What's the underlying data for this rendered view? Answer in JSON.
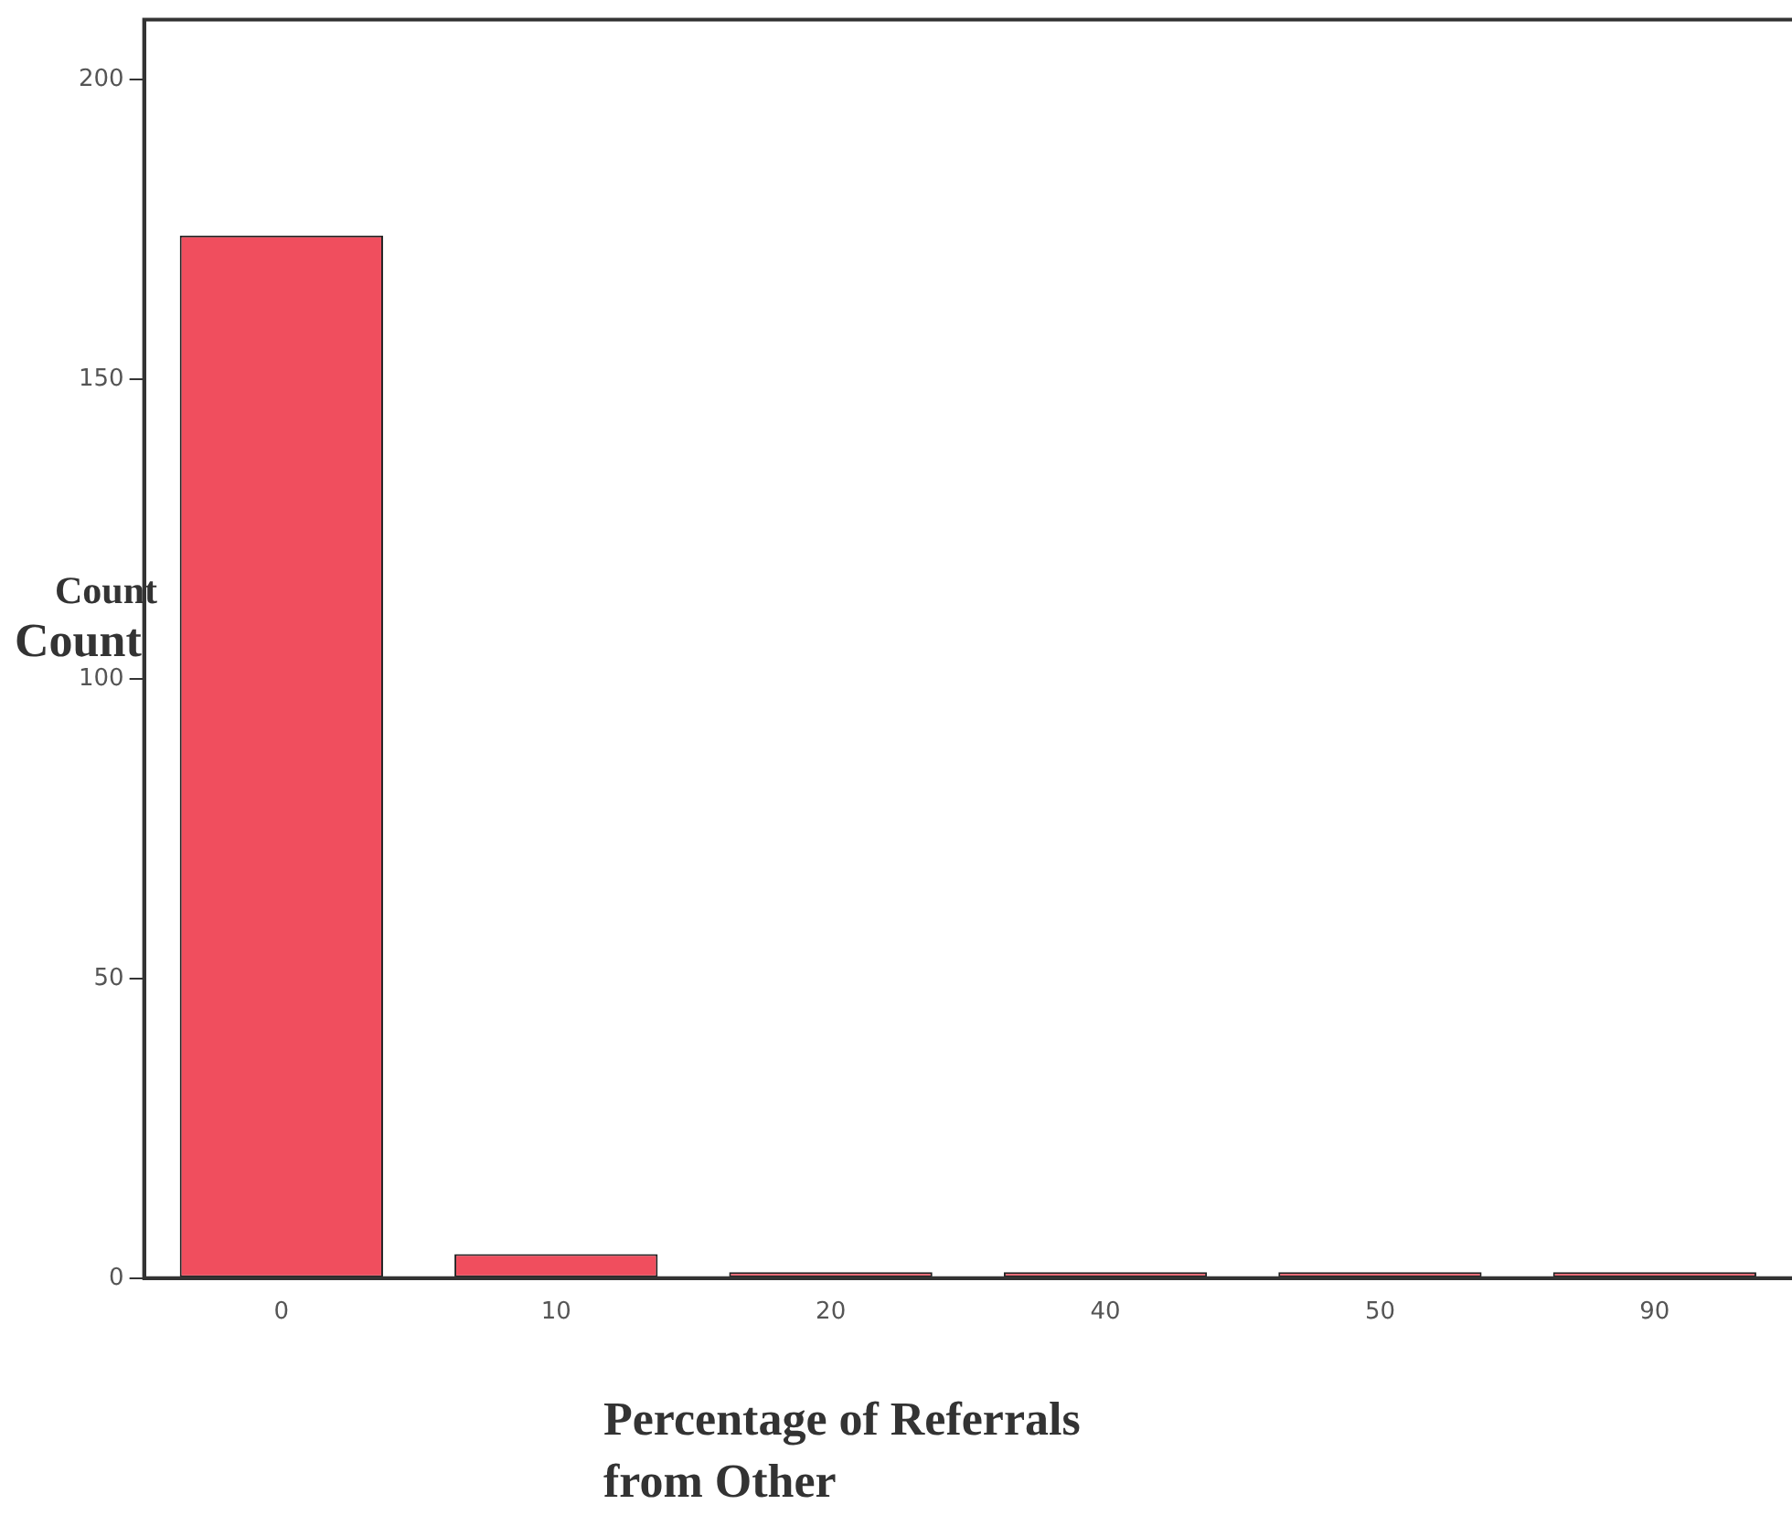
{
  "chart_data": {
    "type": "bar",
    "xlabel": "Percentage of Referrals from Other",
    "ylabel": "Count",
    "annotations": [
      "Count"
    ],
    "categories": [
      "0",
      "10",
      "20",
      "40",
      "50",
      "90"
    ],
    "values": [
      174,
      4,
      1,
      1,
      1,
      1
    ],
    "color": "#f04e5e",
    "ylim": [
      0,
      210
    ],
    "yticks": [
      0,
      50,
      100,
      150,
      200
    ],
    "grid": false,
    "legend": false
  }
}
